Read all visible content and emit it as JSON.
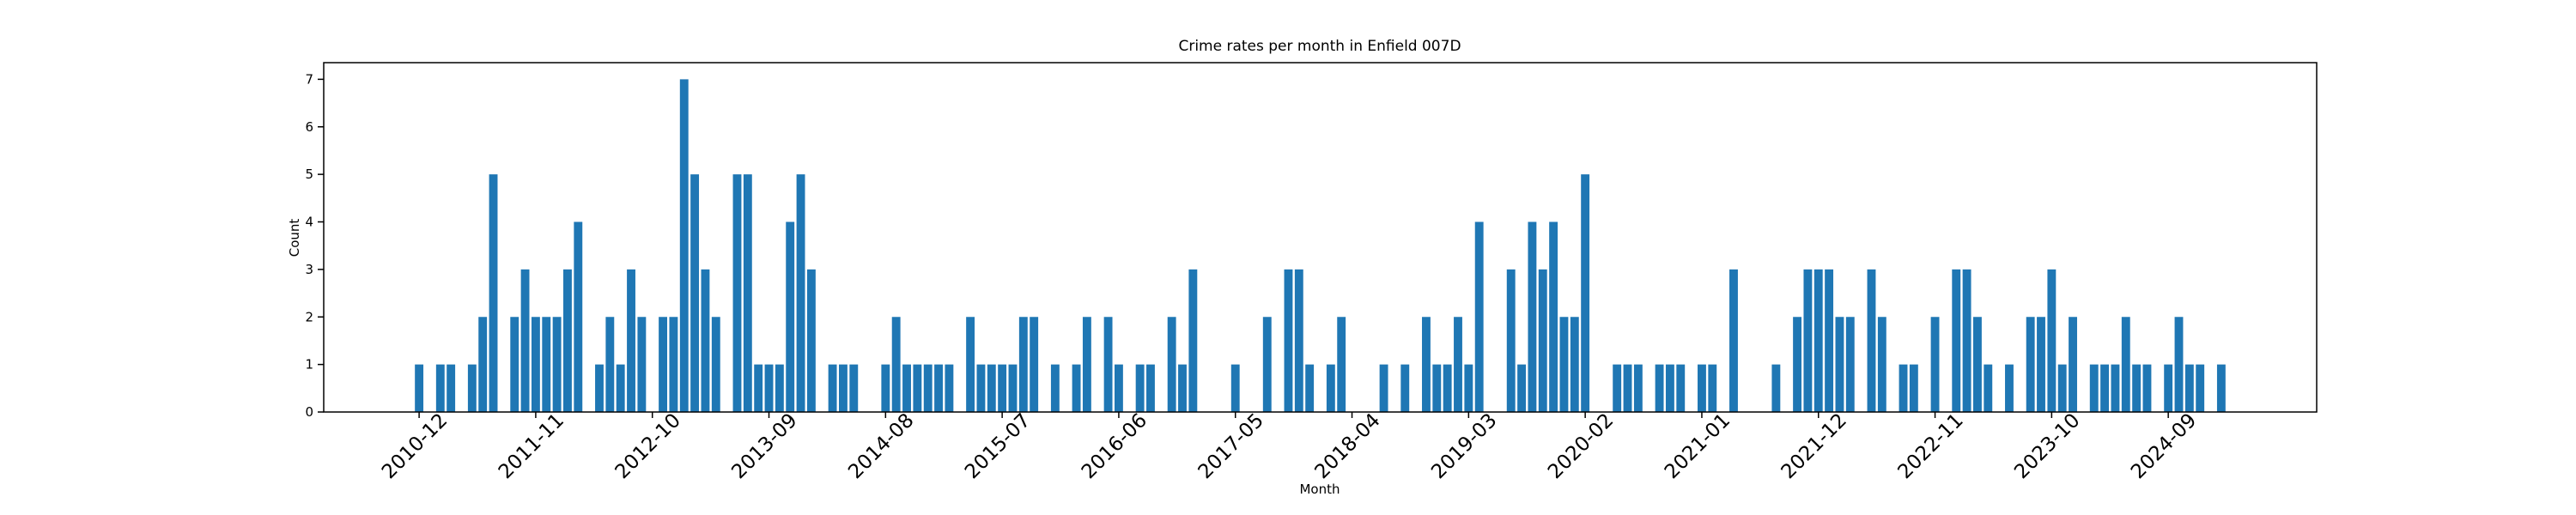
{
  "chart_data": {
    "type": "bar",
    "title": "Crime rates per month in Enfield 007D",
    "xlabel": "Month",
    "ylabel": "Count",
    "color": "#1f77b4",
    "x": [
      "2010-12",
      "2011-02",
      "2011-03",
      "2011-05",
      "2011-06",
      "2011-07",
      "2011-09",
      "2011-10",
      "2011-11",
      "2011-12",
      "2012-01",
      "2012-02",
      "2012-03",
      "2012-05",
      "2012-06",
      "2012-07",
      "2012-08",
      "2012-09",
      "2012-11",
      "2012-12",
      "2013-01",
      "2013-02",
      "2013-03",
      "2013-04",
      "2013-06",
      "2013-07",
      "2013-08",
      "2013-09",
      "2013-10",
      "2013-11",
      "2013-12",
      "2014-01",
      "2014-03",
      "2014-04",
      "2014-05",
      "2014-08",
      "2014-09",
      "2014-10",
      "2014-11",
      "2014-12",
      "2015-01",
      "2015-02",
      "2015-04",
      "2015-05",
      "2015-06",
      "2015-07",
      "2015-08",
      "2015-09",
      "2015-10",
      "2015-12",
      "2016-02",
      "2016-03",
      "2016-05",
      "2016-06",
      "2016-08",
      "2016-09",
      "2016-11",
      "2016-12",
      "2017-01",
      "2017-05",
      "2017-08",
      "2017-10",
      "2017-11",
      "2017-12",
      "2018-02",
      "2018-03",
      "2018-07",
      "2018-09",
      "2018-11",
      "2018-12",
      "2019-01",
      "2019-02",
      "2019-03",
      "2019-04",
      "2019-07",
      "2019-08",
      "2019-09",
      "2019-10",
      "2019-11",
      "2019-12",
      "2020-01",
      "2020-02",
      "2020-05",
      "2020-06",
      "2020-07",
      "2020-09",
      "2020-10",
      "2020-11",
      "2021-01",
      "2021-02",
      "2021-04",
      "2021-08",
      "2021-10",
      "2021-11",
      "2021-12",
      "2022-01",
      "2022-02",
      "2022-03",
      "2022-05",
      "2022-06",
      "2022-08",
      "2022-09",
      "2022-11",
      "2023-01",
      "2023-02",
      "2023-03",
      "2023-04",
      "2023-06",
      "2023-08",
      "2023-09",
      "2023-10",
      "2023-11",
      "2023-12",
      "2024-02",
      "2024-03",
      "2024-04",
      "2024-05",
      "2024-06",
      "2024-07",
      "2024-09",
      "2024-10",
      "2024-11",
      "2024-12",
      "2025-02"
    ],
    "values": [
      1,
      1,
      1,
      1,
      2,
      5,
      2,
      3,
      2,
      2,
      2,
      3,
      4,
      1,
      2,
      1,
      3,
      2,
      2,
      2,
      7,
      5,
      3,
      2,
      5,
      5,
      1,
      1,
      1,
      4,
      5,
      3,
      1,
      1,
      1,
      1,
      2,
      1,
      1,
      1,
      1,
      1,
      2,
      1,
      1,
      1,
      1,
      2,
      2,
      1,
      1,
      2,
      2,
      1,
      1,
      1,
      2,
      1,
      3,
      1,
      2,
      3,
      3,
      1,
      1,
      2,
      1,
      1,
      2,
      1,
      1,
      2,
      1,
      4,
      3,
      1,
      4,
      3,
      4,
      2,
      2,
      5,
      1,
      1,
      1,
      1,
      1,
      1,
      1,
      1,
      3,
      1,
      2,
      3,
      3,
      3,
      2,
      2,
      3,
      2,
      1,
      1,
      2,
      3,
      3,
      2,
      1,
      1,
      2,
      2,
      3,
      1,
      2,
      1,
      1,
      1,
      2,
      1,
      1,
      1,
      2,
      1,
      1,
      1
    ],
    "xlim": [
      "2010-03",
      "2025-11"
    ],
    "xticks": [
      "2010-12",
      "2011-11",
      "2012-10",
      "2013-09",
      "2014-08",
      "2015-07",
      "2016-06",
      "2017-05",
      "2018-04",
      "2019-03",
      "2020-02",
      "2021-01",
      "2021-12",
      "2022-11",
      "2023-10",
      "2024-09"
    ],
    "ylim": [
      0,
      7.35
    ],
    "yticks": [
      0,
      1,
      2,
      3,
      4,
      5,
      6,
      7
    ]
  }
}
